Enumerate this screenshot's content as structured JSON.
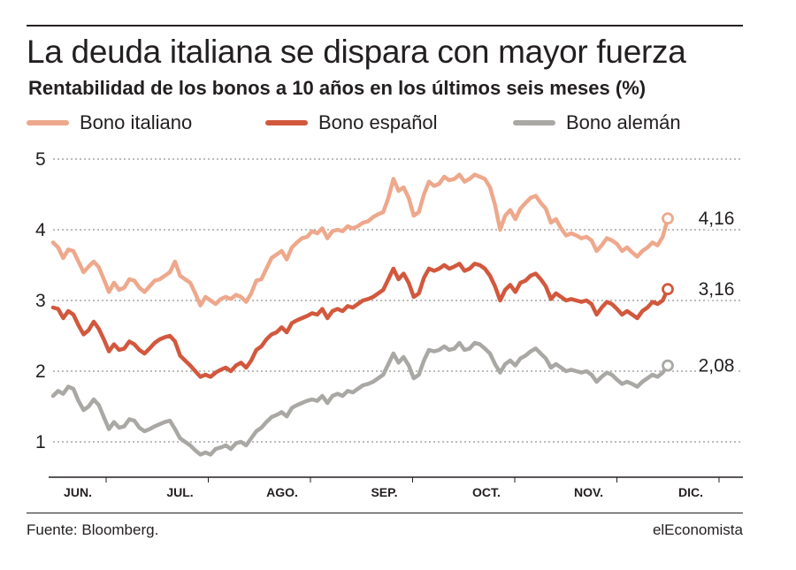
{
  "header": {
    "title": "La deuda italiana se dispara con mayor fuerza",
    "subtitle": "Rentabilidad de los bonos a 10 años en los últimos seis meses (%)"
  },
  "footer": {
    "source": "Fuente: Bloomberg.",
    "brand": "elEconomista"
  },
  "chart_data": {
    "type": "line",
    "title": "La deuda italiana se dispara con mayor fuerza",
    "subtitle": "Rentabilidad de los bonos a 10 años en los últimos seis meses (%)",
    "xlabel": "",
    "ylabel": "",
    "ylim": [
      0.5,
      5
    ],
    "y_ticks": [
      1,
      2,
      3,
      4,
      5
    ],
    "x_month_labels": [
      "JUN.",
      "JUL.",
      "AGO.",
      "SEP.",
      "OCT.",
      "NOV.",
      "DIC."
    ],
    "grid": "horizontal dotted",
    "legend_position": "top",
    "series": [
      {
        "name": "Bono italiano",
        "color": "#eea88c",
        "end_label": "4,16",
        "values": [
          3.82,
          3.75,
          3.6,
          3.72,
          3.7,
          3.55,
          3.4,
          3.48,
          3.55,
          3.47,
          3.3,
          3.12,
          3.25,
          3.15,
          3.18,
          3.3,
          3.28,
          3.18,
          3.12,
          3.2,
          3.28,
          3.3,
          3.35,
          3.4,
          3.55,
          3.35,
          3.3,
          3.25,
          3.1,
          2.93,
          3.05,
          3.0,
          2.95,
          3.02,
          3.05,
          3.02,
          3.08,
          3.05,
          2.98,
          3.1,
          3.28,
          3.3,
          3.45,
          3.6,
          3.65,
          3.7,
          3.58,
          3.75,
          3.82,
          3.88,
          3.9,
          3.98,
          3.95,
          4.02,
          3.88,
          3.98,
          4.0,
          3.98,
          4.05,
          4.02,
          4.05,
          4.1,
          4.12,
          4.18,
          4.22,
          4.25,
          4.45,
          4.72,
          4.55,
          4.6,
          4.45,
          4.2,
          4.25,
          4.5,
          4.68,
          4.62,
          4.65,
          4.75,
          4.7,
          4.72,
          4.78,
          4.68,
          4.72,
          4.78,
          4.75,
          4.72,
          4.6,
          4.35,
          4.0,
          4.2,
          4.28,
          4.15,
          4.3,
          4.38,
          4.45,
          4.48,
          4.38,
          4.3,
          4.1,
          4.15,
          4.02,
          3.92,
          3.95,
          3.92,
          3.88,
          3.9,
          3.85,
          3.7,
          3.78,
          3.88,
          3.85,
          3.8,
          3.7,
          3.75,
          3.68,
          3.62,
          3.7,
          3.75,
          3.82,
          3.78,
          3.9,
          4.16
        ]
      },
      {
        "name": "Bono español",
        "color": "#d2583d",
        "end_label": "3,16",
        "values": [
          2.9,
          2.88,
          2.75,
          2.85,
          2.8,
          2.65,
          2.52,
          2.58,
          2.7,
          2.6,
          2.45,
          2.28,
          2.38,
          2.3,
          2.32,
          2.42,
          2.38,
          2.3,
          2.25,
          2.32,
          2.4,
          2.45,
          2.48,
          2.5,
          2.42,
          2.22,
          2.15,
          2.08,
          2.0,
          1.92,
          1.95,
          1.92,
          1.98,
          2.02,
          2.05,
          2.0,
          2.08,
          2.12,
          2.05,
          2.15,
          2.3,
          2.35,
          2.45,
          2.52,
          2.55,
          2.62,
          2.55,
          2.68,
          2.72,
          2.75,
          2.78,
          2.82,
          2.8,
          2.88,
          2.75,
          2.85,
          2.88,
          2.85,
          2.92,
          2.9,
          2.95,
          3.0,
          3.02,
          3.05,
          3.1,
          3.15,
          3.3,
          3.45,
          3.3,
          3.38,
          3.25,
          3.05,
          3.1,
          3.32,
          3.45,
          3.42,
          3.45,
          3.5,
          3.45,
          3.48,
          3.52,
          3.42,
          3.45,
          3.52,
          3.5,
          3.45,
          3.35,
          3.2,
          3.0,
          3.15,
          3.22,
          3.12,
          3.25,
          3.28,
          3.35,
          3.38,
          3.3,
          3.2,
          3.02,
          3.1,
          3.05,
          3.0,
          3.02,
          3.0,
          2.98,
          3.0,
          2.95,
          2.8,
          2.9,
          2.98,
          2.95,
          2.88,
          2.8,
          2.85,
          2.8,
          2.75,
          2.85,
          2.9,
          2.98,
          2.95,
          3.0,
          3.16
        ]
      },
      {
        "name": "Bono alemán",
        "color": "#aaa8a4",
        "end_label": "2,08",
        "values": [
          1.65,
          1.72,
          1.68,
          1.78,
          1.75,
          1.58,
          1.45,
          1.5,
          1.6,
          1.52,
          1.35,
          1.18,
          1.28,
          1.2,
          1.22,
          1.32,
          1.3,
          1.2,
          1.15,
          1.18,
          1.22,
          1.25,
          1.28,
          1.3,
          1.18,
          1.05,
          1.0,
          0.95,
          0.88,
          0.82,
          0.85,
          0.82,
          0.9,
          0.92,
          0.95,
          0.9,
          0.98,
          1.0,
          0.95,
          1.05,
          1.15,
          1.2,
          1.28,
          1.35,
          1.38,
          1.42,
          1.36,
          1.48,
          1.52,
          1.55,
          1.58,
          1.6,
          1.58,
          1.65,
          1.55,
          1.65,
          1.68,
          1.65,
          1.72,
          1.7,
          1.75,
          1.8,
          1.82,
          1.85,
          1.9,
          1.95,
          2.1,
          2.25,
          2.12,
          2.2,
          2.08,
          1.9,
          1.95,
          2.15,
          2.3,
          2.28,
          2.3,
          2.35,
          2.3,
          2.32,
          2.4,
          2.3,
          2.32,
          2.4,
          2.38,
          2.32,
          2.25,
          2.1,
          1.98,
          2.1,
          2.15,
          2.08,
          2.18,
          2.22,
          2.28,
          2.32,
          2.25,
          2.18,
          2.05,
          2.1,
          2.05,
          2.0,
          2.02,
          2.0,
          1.98,
          2.0,
          1.95,
          1.85,
          1.92,
          1.98,
          1.95,
          1.88,
          1.82,
          1.85,
          1.82,
          1.78,
          1.85,
          1.9,
          1.95,
          1.92,
          1.98,
          2.08
        ]
      }
    ]
  }
}
